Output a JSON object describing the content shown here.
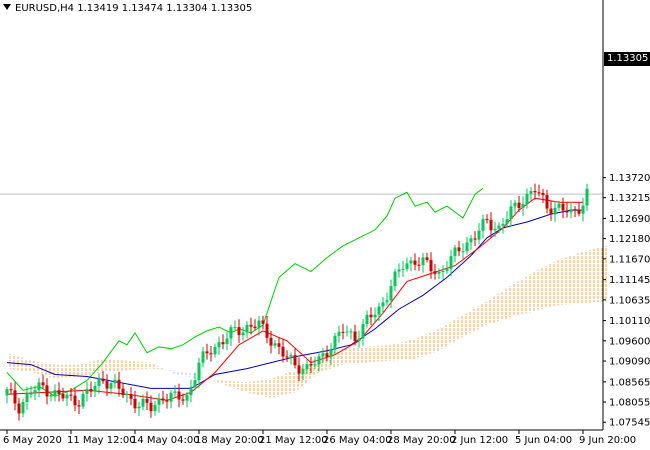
{
  "window": {
    "symbol_label": "EURUSD,H4",
    "ohlc": [
      "1.13419",
      "1.13474",
      "1.13304",
      "1.13305"
    ],
    "current_price": "1.13305",
    "collapse_icon": "triangle-down-icon"
  },
  "colors": {
    "background": "#ffffff",
    "axis": "#000000",
    "bull_candle": "#00c957",
    "bear_candle": "#d00000",
    "tenkan": "#ff0000",
    "kijun": "#0000bb",
    "chikou": "#00cc00",
    "cloud_bull": "#f4a460",
    "cloud_bear": "#d8bfd8",
    "price_line": "#c0c0c0"
  },
  "chart_data": {
    "type": "candlestick",
    "symbol": "EURUSD",
    "timeframe": "H4",
    "indicator": "Ichimoku Kinko Hyo",
    "ylim": [
      1.0745,
      1.178
    ],
    "y_ticks": [
      "1.13720",
      "1.13215",
      "1.12690",
      "1.12180",
      "1.11670",
      "1.11145",
      "1.10635",
      "1.10110",
      "1.09600",
      "1.09090",
      "1.08565",
      "1.08055",
      "1.07545"
    ],
    "x_ticks": [
      "6 May 2020",
      "11 May 12:00",
      "14 May 04:00",
      "18 May 20:00",
      "21 May 12:00",
      "26 May 04:00",
      "28 May 20:00",
      "2 Jun 12:00",
      "5 Jun 04:00",
      "9 Jun 20:00"
    ],
    "x_tick_bars": [
      0,
      16,
      32,
      48,
      64,
      80,
      96,
      112,
      128,
      144
    ],
    "close_path": [
      [
        0,
        1.083
      ],
      [
        3,
        1.0795
      ],
      [
        6,
        1.083
      ],
      [
        9,
        1.0845
      ],
      [
        12,
        1.0825
      ],
      [
        15,
        1.0815
      ],
      [
        18,
        1.081
      ],
      [
        21,
        1.0835
      ],
      [
        24,
        1.0865
      ],
      [
        27,
        1.0845
      ],
      [
        30,
        1.082
      ],
      [
        33,
        1.08
      ],
      [
        36,
        1.079
      ],
      [
        39,
        1.082
      ],
      [
        42,
        1.0815
      ],
      [
        45,
        1.082
      ],
      [
        48,
        1.09
      ],
      [
        51,
        1.094
      ],
      [
        54,
        1.096
      ],
      [
        57,
        1.0985
      ],
      [
        60,
        1.0995
      ],
      [
        63,
        1.1
      ],
      [
        66,
        1.0965
      ],
      [
        69,
        1.0925
      ],
      [
        72,
        1.09
      ],
      [
        75,
        1.089
      ],
      [
        78,
        1.091
      ],
      [
        81,
        1.095
      ],
      [
        84,
        1.0985
      ],
      [
        87,
        1.097
      ],
      [
        90,
        1.101
      ],
      [
        93,
        1.104
      ],
      [
        96,
        1.11
      ],
      [
        99,
        1.115
      ],
      [
        102,
        1.1165
      ],
      [
        105,
        1.115
      ],
      [
        108,
        1.113
      ],
      [
        111,
        1.1165
      ],
      [
        114,
        1.12
      ],
      [
        117,
        1.1225
      ],
      [
        120,
        1.126
      ],
      [
        123,
        1.1245
      ],
      [
        126,
        1.1285
      ],
      [
        129,
        1.132
      ],
      [
        132,
        1.134
      ],
      [
        135,
        1.13
      ],
      [
        138,
        1.1295
      ],
      [
        141,
        1.128
      ],
      [
        144,
        1.131
      ],
      [
        145,
        1.1331
      ]
    ],
    "tenkan_path": [
      [
        0,
        1.0825
      ],
      [
        10,
        1.083
      ],
      [
        20,
        1.0835
      ],
      [
        30,
        1.0825
      ],
      [
        40,
        1.081
      ],
      [
        46,
        1.083
      ],
      [
        52,
        1.088
      ],
      [
        58,
        1.095
      ],
      [
        64,
        1.0985
      ],
      [
        70,
        1.096
      ],
      [
        76,
        1.0905
      ],
      [
        82,
        1.0925
      ],
      [
        88,
        1.096
      ],
      [
        94,
        1.103
      ],
      [
        100,
        1.111
      ],
      [
        106,
        1.113
      ],
      [
        112,
        1.115
      ],
      [
        118,
        1.1195
      ],
      [
        124,
        1.1245
      ],
      [
        128,
        1.129
      ],
      [
        132,
        1.132
      ],
      [
        138,
        1.131
      ],
      [
        144,
        1.131
      ]
    ],
    "kijun_path": [
      [
        0,
        1.0905
      ],
      [
        6,
        1.09
      ],
      [
        12,
        1.0875
      ],
      [
        20,
        1.087
      ],
      [
        28,
        1.0855
      ],
      [
        36,
        1.084
      ],
      [
        46,
        1.084
      ],
      [
        52,
        1.0875
      ],
      [
        60,
        1.089
      ],
      [
        66,
        1.0905
      ],
      [
        72,
        1.092
      ],
      [
        80,
        1.0935
      ],
      [
        86,
        1.095
      ],
      [
        92,
        1.099
      ],
      [
        98,
        1.104
      ],
      [
        104,
        1.1075
      ],
      [
        110,
        1.112
      ],
      [
        116,
        1.1175
      ],
      [
        120,
        1.122
      ],
      [
        124,
        1.1245
      ],
      [
        130,
        1.126
      ],
      [
        136,
        1.128
      ],
      [
        141,
        1.129
      ],
      [
        144,
        1.129
      ]
    ],
    "chikou_path": [
      [
        0,
        1.088
      ],
      [
        4,
        1.0835
      ],
      [
        8,
        1.0845
      ],
      [
        12,
        1.082
      ],
      [
        16,
        1.0835
      ],
      [
        20,
        1.086
      ],
      [
        24,
        1.0905
      ],
      [
        28,
        1.096
      ],
      [
        30,
        1.095
      ],
      [
        32,
        1.098
      ],
      [
        35,
        1.093
      ],
      [
        38,
        1.0945
      ],
      [
        41,
        1.094
      ],
      [
        44,
        1.095
      ],
      [
        47,
        1.097
      ],
      [
        50,
        1.0985
      ],
      [
        53,
        1.0995
      ],
      [
        56,
        1.098
      ],
      [
        58,
        1.099
      ],
      [
        61,
        1.098
      ],
      [
        64,
        1.1
      ],
      [
        68,
        1.112
      ],
      [
        72,
        1.1155
      ],
      [
        76,
        1.1135
      ],
      [
        80,
        1.117
      ],
      [
        84,
        1.12
      ],
      [
        88,
        1.122
      ],
      [
        92,
        1.124
      ],
      [
        95,
        1.1275
      ],
      [
        97,
        1.132
      ],
      [
        100,
        1.1335
      ],
      [
        102,
        1.13
      ],
      [
        105,
        1.131
      ],
      [
        107,
        1.1285
      ],
      [
        110,
        1.13
      ],
      [
        114,
        1.127
      ],
      [
        117,
        1.133
      ],
      [
        119,
        1.1345
      ]
    ],
    "span_a_path": [
      [
        0,
        1.093
      ],
      [
        6,
        1.091
      ],
      [
        12,
        1.09
      ],
      [
        18,
        1.09
      ],
      [
        24,
        1.0915
      ],
      [
        30,
        1.091
      ],
      [
        36,
        1.0905
      ],
      [
        42,
        1.0875
      ],
      [
        48,
        1.0865
      ],
      [
        54,
        1.086
      ],
      [
        60,
        1.0855
      ],
      [
        66,
        1.0865
      ],
      [
        72,
        1.0885
      ],
      [
        78,
        1.092
      ],
      [
        84,
        1.094
      ],
      [
        90,
        1.0945
      ],
      [
        96,
        1.095
      ],
      [
        102,
        1.0965
      ],
      [
        108,
        1.099
      ],
      [
        114,
        1.1025
      ],
      [
        120,
        1.106
      ],
      [
        126,
        1.11
      ],
      [
        132,
        1.1135
      ],
      [
        138,
        1.1165
      ],
      [
        144,
        1.1185
      ],
      [
        150,
        1.12
      ]
    ],
    "span_b_path": [
      [
        0,
        1.089
      ],
      [
        6,
        1.088
      ],
      [
        12,
        1.0865
      ],
      [
        18,
        1.087
      ],
      [
        24,
        1.088
      ],
      [
        30,
        1.0885
      ],
      [
        36,
        1.089
      ],
      [
        42,
        1.0885
      ],
      [
        48,
        1.0875
      ],
      [
        54,
        1.085
      ],
      [
        60,
        1.083
      ],
      [
        66,
        1.0815
      ],
      [
        72,
        1.083
      ],
      [
        78,
        1.088
      ],
      [
        84,
        1.09
      ],
      [
        90,
        1.0905
      ],
      [
        96,
        1.091
      ],
      [
        102,
        1.0915
      ],
      [
        108,
        1.0935
      ],
      [
        114,
        1.097
      ],
      [
        120,
        1.1
      ],
      [
        126,
        1.102
      ],
      [
        132,
        1.1035
      ],
      [
        138,
        1.105
      ],
      [
        144,
        1.1055
      ],
      [
        150,
        1.106
      ]
    ]
  }
}
